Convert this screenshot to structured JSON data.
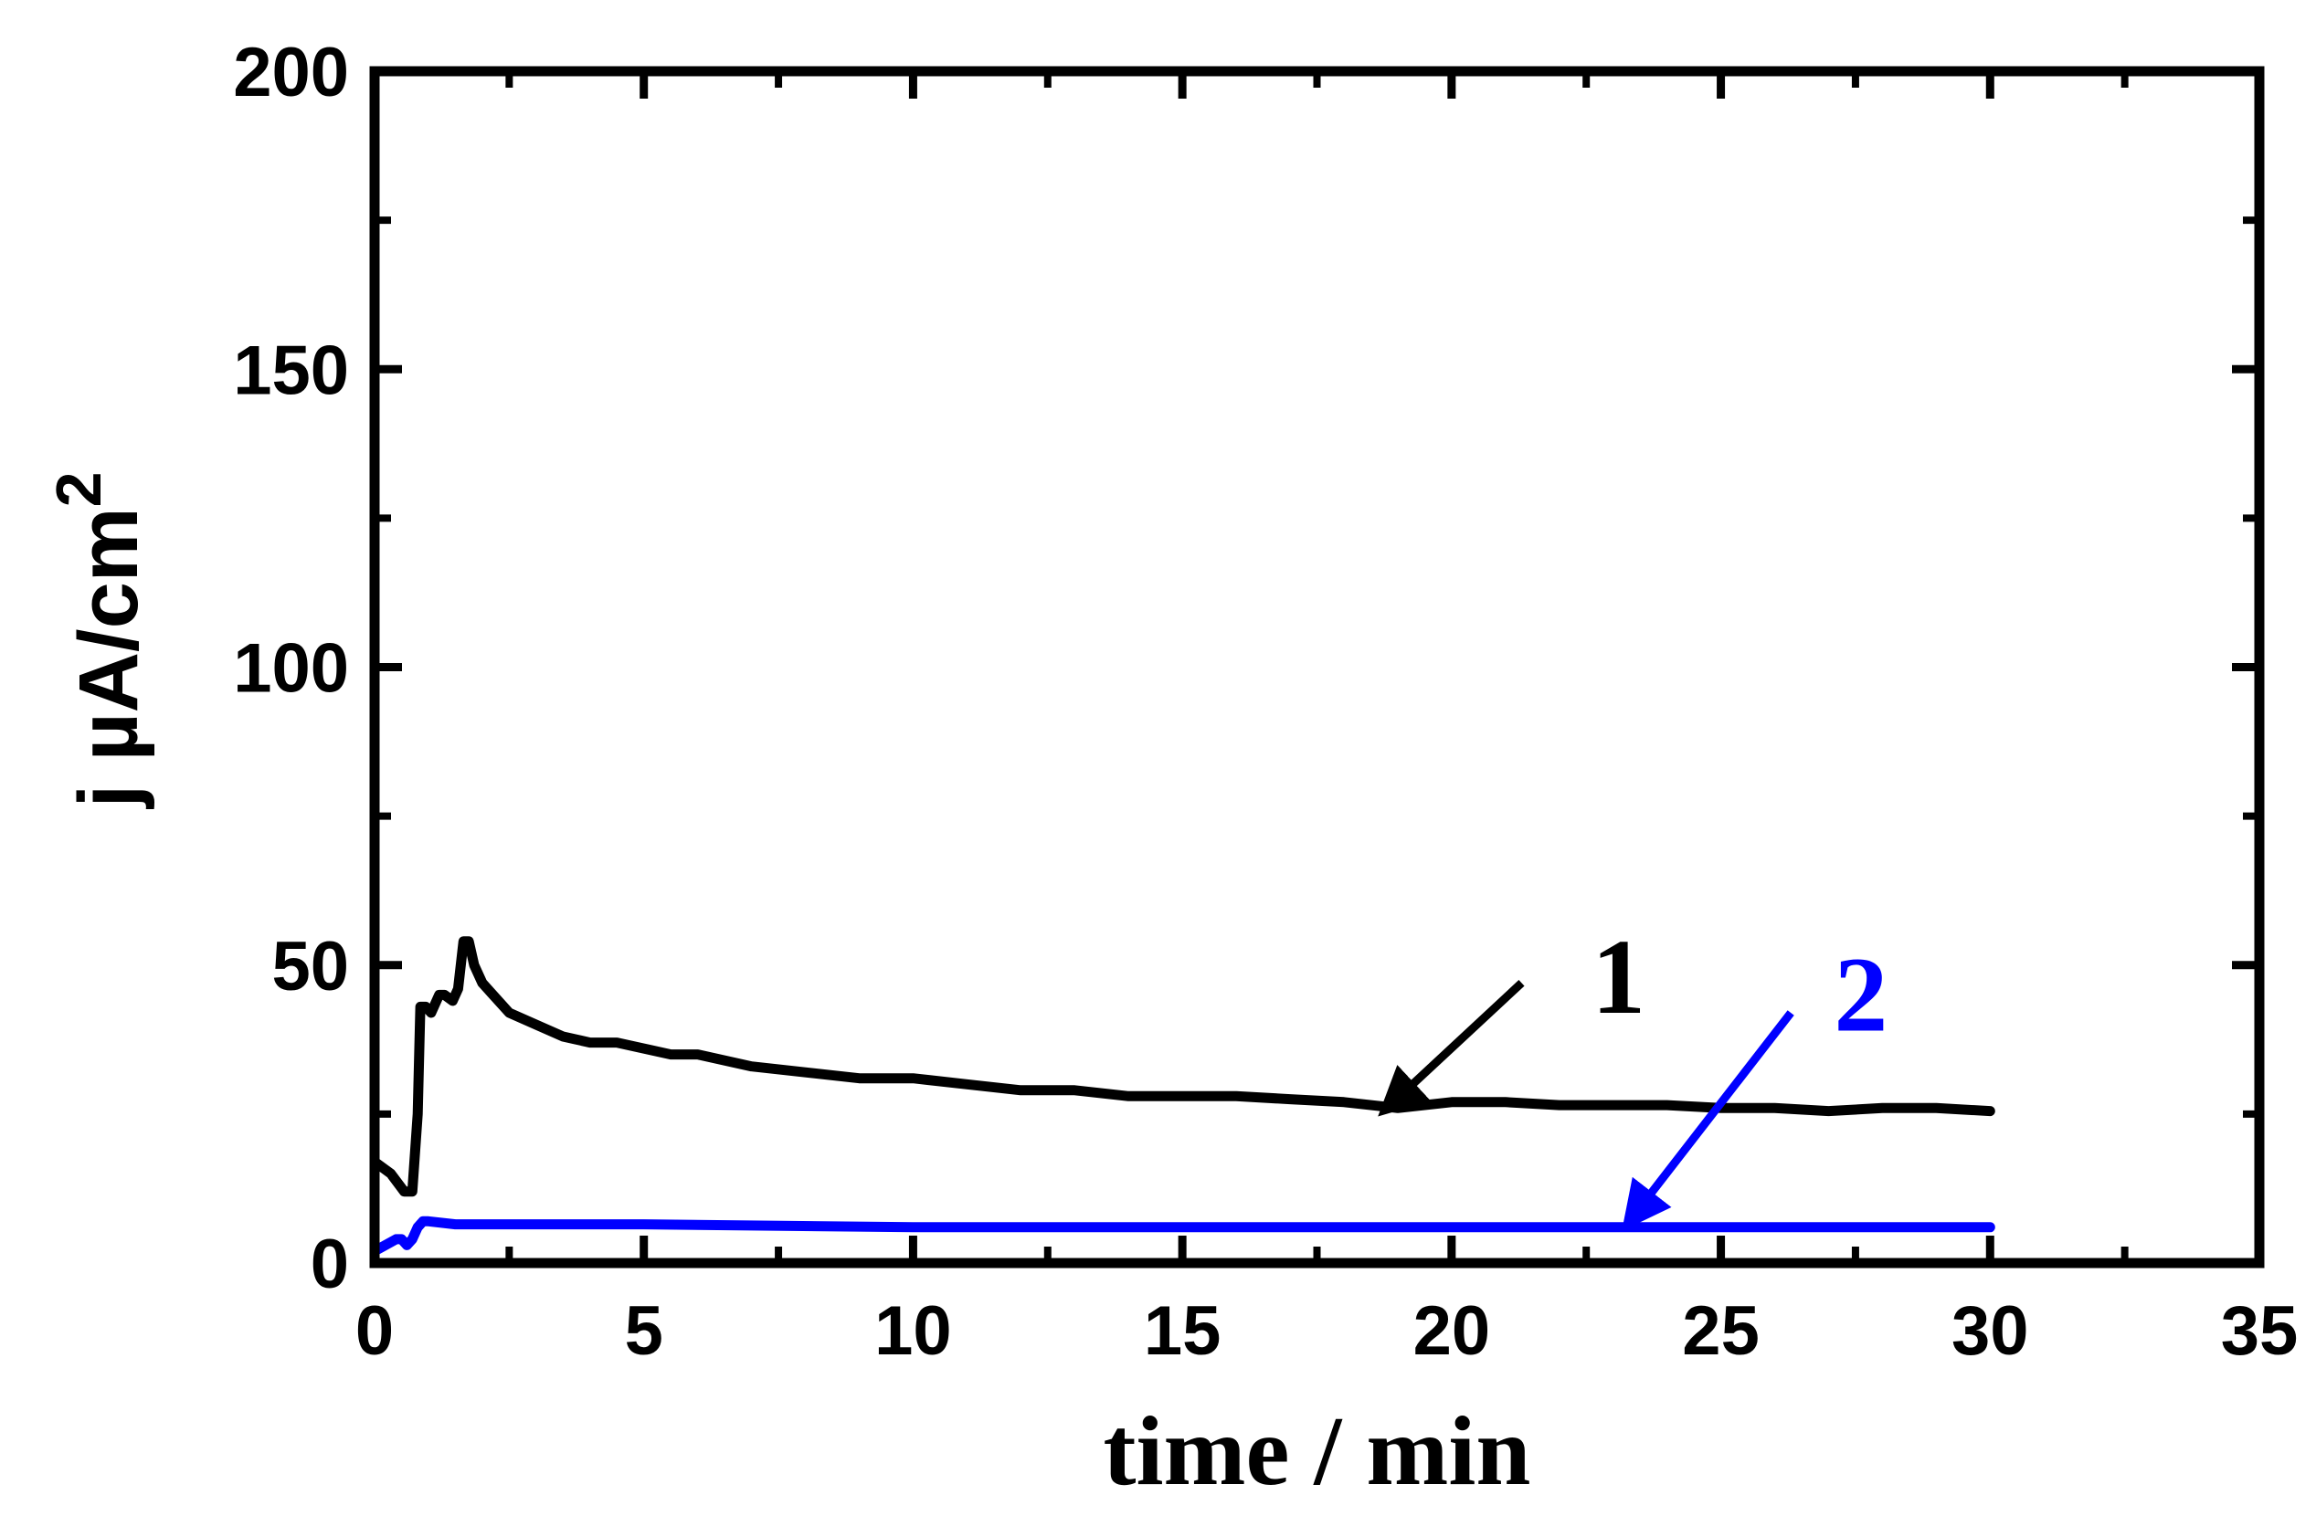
{
  "chart_data": {
    "type": "line",
    "title": "",
    "xlabel": "time / min",
    "ylabel": {
      "main": "j µA/cm",
      "sup": "2"
    },
    "xlim": [
      0,
      35
    ],
    "ylim": [
      0,
      200
    ],
    "xticks": [
      0,
      5,
      10,
      15,
      20,
      25,
      30,
      35
    ],
    "yticks": [
      0,
      50,
      100,
      150,
      200
    ],
    "grid": false,
    "legend": "none",
    "series": [
      {
        "color": "#000000",
        "label": "1",
        "x": [
          0,
          0.3,
          0.55,
          0.7,
          0.8,
          0.85,
          0.95,
          1.05,
          1.2,
          1.3,
          1.45,
          1.55,
          1.65,
          1.75,
          1.85,
          2.0,
          2.2,
          2.5,
          3.0,
          3.5,
          4.0,
          4.5,
          5.0,
          5.5,
          6.0,
          7.0,
          8.0,
          9.0,
          10.0,
          11.0,
          12.0,
          13.0,
          14.0,
          15.0,
          16.0,
          17.0,
          18.0,
          19.0,
          20.0,
          21.0,
          22.0,
          23.0,
          24.0,
          25.0,
          26.0,
          27.0,
          28.0,
          29.0,
          30.0
        ],
        "y": [
          17,
          15,
          12,
          12,
          25,
          43,
          43,
          42,
          45,
          45,
          44,
          46,
          54,
          54,
          50,
          47,
          45,
          42,
          40,
          38,
          37,
          37,
          36,
          35,
          35,
          33,
          32,
          31,
          31,
          30,
          29,
          29,
          28,
          28,
          28,
          27.5,
          27,
          26,
          27,
          27,
          26.5,
          26.5,
          26.5,
          26,
          26,
          25.5,
          26,
          26,
          25.5
        ]
      },
      {
        "color": "#0000ff",
        "label": "2",
        "x": [
          0,
          0.2,
          0.4,
          0.5,
          0.6,
          0.7,
          0.8,
          0.9,
          1.0,
          1.5,
          2.0,
          5.0,
          10.0,
          15.0,
          20.0,
          25.0,
          30.0
        ],
        "y": [
          2,
          3,
          4,
          4,
          3,
          4,
          6,
          7,
          7,
          6.5,
          6.5,
          6.5,
          6,
          6,
          6,
          6,
          6
        ]
      }
    ],
    "annotations": [
      {
        "text": "1",
        "color": "#000000",
        "label_x": 23.1,
        "label_y": 42,
        "arrow_from": [
          21.3,
          47
        ],
        "arrow_to": [
          18.8,
          26
        ]
      },
      {
        "text": "2",
        "color": "#0000ff",
        "label_x": 27.6,
        "label_y": 39,
        "arrow_from": [
          26.3,
          42
        ],
        "arrow_to": [
          23.3,
          7
        ]
      }
    ]
  }
}
